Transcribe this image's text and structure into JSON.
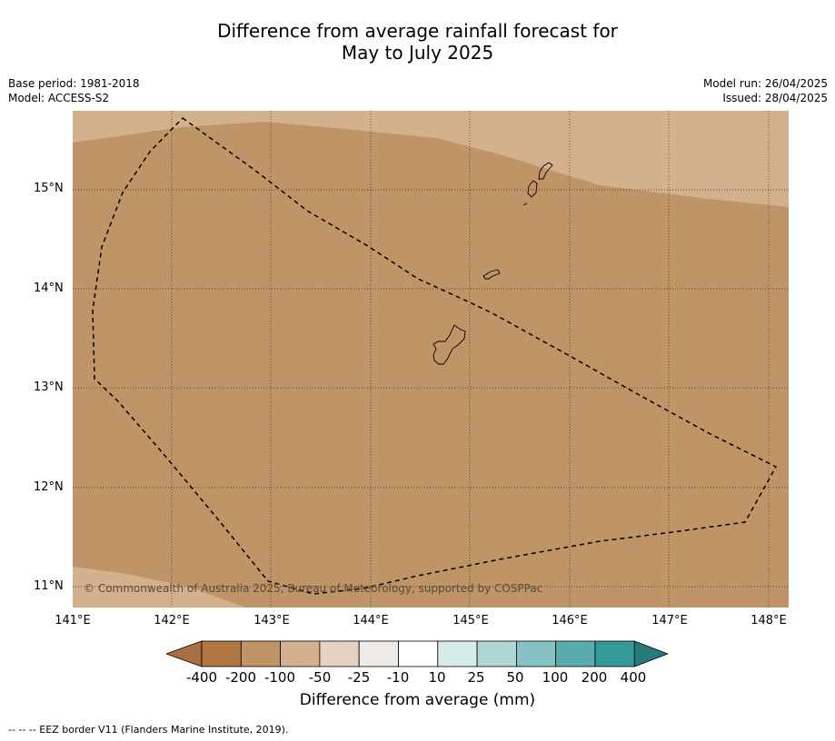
{
  "title_line1": "Difference from average rainfall forecast for",
  "title_line2": "May to July 2025",
  "meta_left": {
    "base_period": "Base period: 1981-2018",
    "model": "Model: ACCESS-S2"
  },
  "meta_right": {
    "model_run": "Model run: 26/04/2025",
    "issued": "Issued: 28/04/2025"
  },
  "copyright": "© Commonwealth of Australia 2025, Bureau of Meteorology, supported by COSPPac",
  "lat_labels": [
    "15°N",
    "14°N",
    "13°N",
    "12°N",
    "11°N"
  ],
  "lon_labels": [
    "141°E",
    "142°E",
    "143°E",
    "144°E",
    "145°E",
    "146°E",
    "147°E",
    "148°E"
  ],
  "colorbar": {
    "ticks": [
      "-400",
      "-200",
      "-100",
      "-50",
      "-25",
      "-10",
      "10",
      "25",
      "50",
      "100",
      "200",
      "400"
    ],
    "colors": [
      "#a87041",
      "#b07840",
      "#bf9467",
      "#d3b08e",
      "#e6d2c0",
      "#eeeae6",
      "#ffffff",
      "#d6ecec",
      "#aed7d6",
      "#86c2c2",
      "#5aacac",
      "#339999",
      "#267a78"
    ],
    "label": "Difference from average (mm)"
  },
  "map": {
    "dominant_category": "-200 to -100 mm",
    "dominant_color": "#bf9467",
    "secondary_color": "#d3b08e",
    "lon_range": [
      141,
      148.2
    ],
    "lat_range": [
      10.8,
      15.8
    ]
  },
  "footnote": "--  --  -- EEZ border V11 (Flanders Marine Institute, 2019)."
}
